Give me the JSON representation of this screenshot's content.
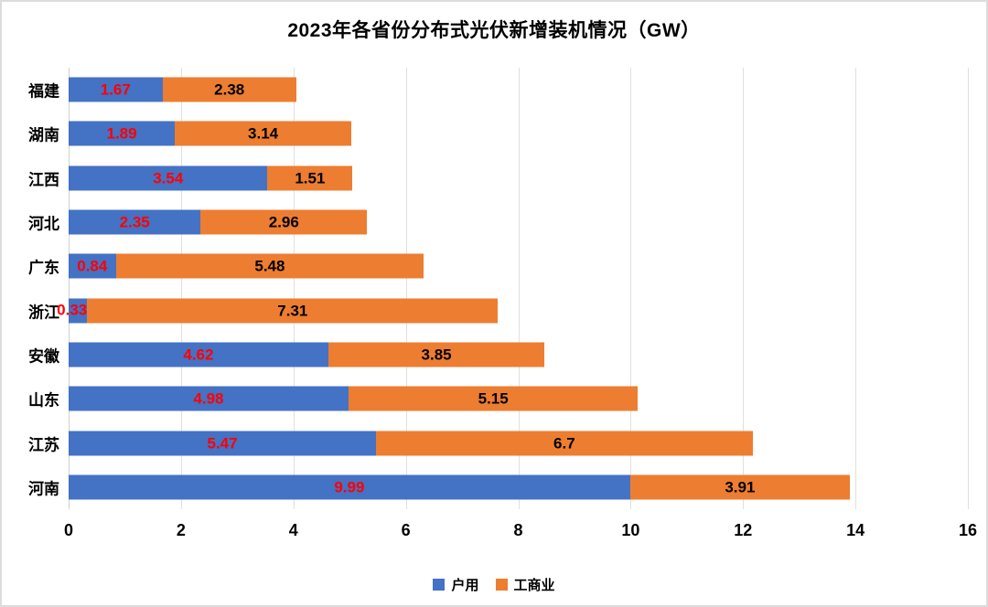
{
  "title": "2023年各省份分布式光伏新增装机情况（GW）",
  "chart_data": {
    "type": "bar",
    "orientation": "horizontal",
    "stacked": true,
    "title": "2023年各省份分布式光伏新增装机情况（GW）",
    "categories": [
      "福建",
      "湖南",
      "江西",
      "河北",
      "广东",
      "浙江",
      "安徽",
      "山东",
      "江苏",
      "河南"
    ],
    "series": [
      {
        "key": "residential",
        "name": "户用",
        "color": "#4472C4",
        "label_color": "#FF0000",
        "values": [
          1.67,
          1.89,
          3.54,
          2.35,
          0.84,
          0.33,
          4.62,
          4.98,
          5.47,
          9.99
        ]
      },
      {
        "key": "commercial",
        "name": "工商业",
        "color": "#ED7D31",
        "label_color": "#000000",
        "values": [
          2.38,
          3.14,
          1.51,
          2.96,
          5.48,
          7.31,
          3.85,
          5.15,
          6.7,
          3.91
        ]
      }
    ],
    "xlim": [
      0,
      16
    ],
    "x_ticks": [
      0,
      2,
      4,
      6,
      8,
      10,
      12,
      14,
      16
    ],
    "grid": "vertical",
    "legend_position": "bottom"
  },
  "colors": {
    "residential_bar": "#4472C4",
    "commercial_bar": "#ED7D31",
    "residential_label": "#FF0000",
    "commercial_label": "#000000",
    "gridline": "#E0E0E0",
    "border": "#DCDCDC",
    "background": "#FFFFFF"
  }
}
